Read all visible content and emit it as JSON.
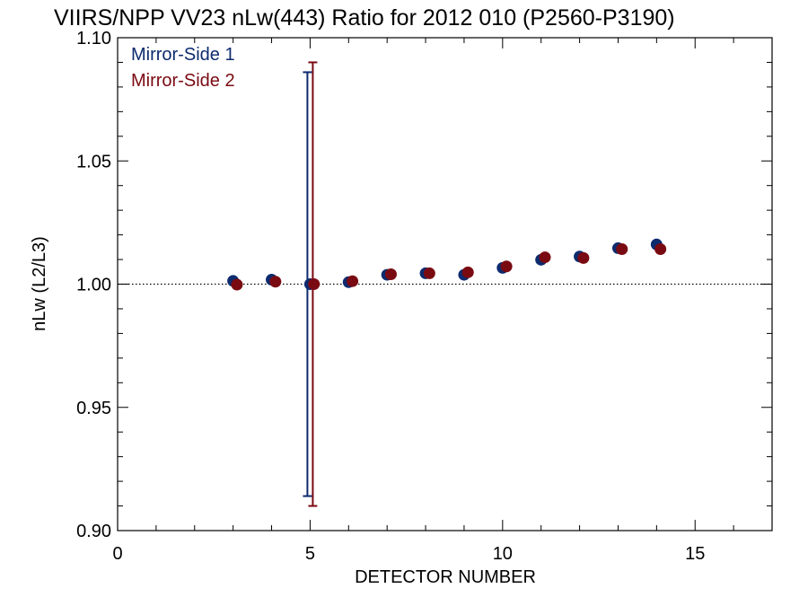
{
  "chart_data": {
    "type": "scatter",
    "title": "VIIRS/NPP VV23 nLw(443) Ratio for 2012 010 (P2560-P3190)",
    "xlabel": "DETECTOR NUMBER",
    "ylabel": "nLw (L2/L3)",
    "xlim": [
      0,
      17
    ],
    "ylim": [
      0.9,
      1.1
    ],
    "x_ticks": [
      "0",
      "5",
      "10",
      "15"
    ],
    "x_tick_values": [
      0,
      5,
      10,
      15
    ],
    "y_ticks": [
      "0.90",
      "0.95",
      "1.00",
      "1.05",
      "1.10"
    ],
    "y_tick_values": [
      0.9,
      0.95,
      1.0,
      1.05,
      1.1
    ],
    "reference_line": 1.0,
    "grid": false,
    "legend_position": "top-left",
    "series": [
      {
        "name": "Mirror-Side 1",
        "color": "#0d2b6e",
        "x": [
          3,
          4,
          5,
          6,
          7,
          8,
          9,
          10,
          11,
          12,
          13,
          14
        ],
        "y": [
          1.0013,
          1.0018,
          1.0,
          1.0008,
          1.0038,
          1.0044,
          1.0038,
          1.0066,
          1.0099,
          1.0112,
          1.0146,
          1.0161
        ],
        "error_bars": [
          {
            "x": 5,
            "low": 0.914,
            "high": 1.086
          }
        ]
      },
      {
        "name": "Mirror-Side 2",
        "color": "#7a0a12",
        "x": [
          3,
          4,
          5,
          6,
          7,
          8,
          9,
          10,
          11,
          12,
          13,
          14
        ],
        "y": [
          0.9998,
          1.001,
          1.0,
          1.0012,
          1.004,
          1.0044,
          1.0048,
          1.0072,
          1.0109,
          1.0106,
          1.0142,
          1.0142
        ],
        "error_bars": [
          {
            "x": 5,
            "low": 0.91,
            "high": 1.09
          }
        ]
      }
    ]
  }
}
